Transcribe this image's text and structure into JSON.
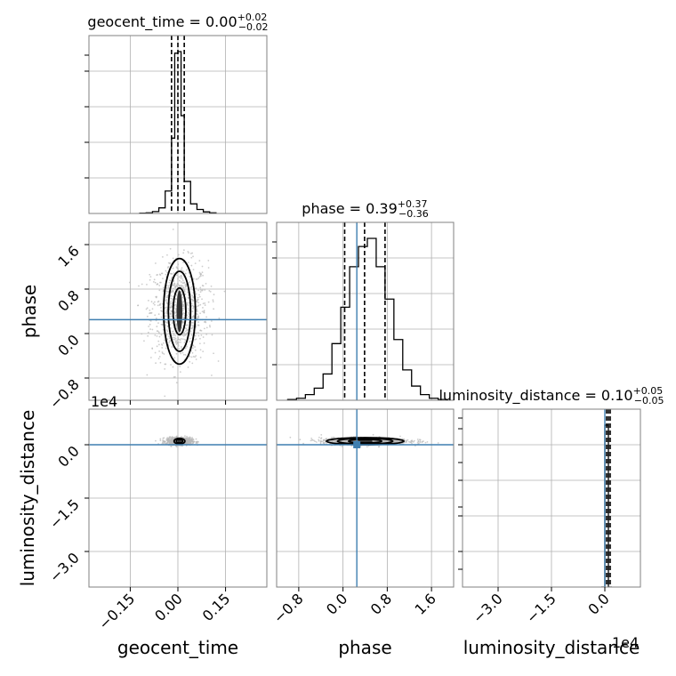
{
  "chart_data": {
    "type": "corner",
    "parameters": [
      "geocent_time",
      "phase",
      "luminosity_distance"
    ],
    "grid": true,
    "colors": {
      "hist": "#000000",
      "truth": "#3f7fb0",
      "grid": "#b0b0b0",
      "frame": "#808080",
      "scatter": "#b8b8b8",
      "contour": "#000000"
    },
    "diagonal": [
      {
        "param": "geocent_time",
        "title_main": "geocent_time = 0.00",
        "title_plus": "+0.02",
        "title_minus": "−0.02",
        "xlim": [
          -0.28,
          0.28
        ],
        "bin_edges": [
          -0.12,
          -0.1,
          -0.08,
          -0.06,
          -0.04,
          -0.02,
          -0.01,
          0.0,
          0.01,
          0.02,
          0.04,
          0.06,
          0.08,
          0.1,
          0.12
        ],
        "counts": [
          2,
          4,
          12,
          35,
          140,
          470,
          1000,
          1010,
          610,
          200,
          60,
          25,
          10,
          4
        ],
        "quantiles": [
          -0.02,
          0.0,
          0.02
        ],
        "truth": null,
        "xticks": []
      },
      {
        "param": "phase",
        "title_main": "phase = 0.39",
        "title_plus": "+0.37",
        "title_minus": "−0.36",
        "xlim": [
          -1.2,
          2.0
        ],
        "bin_edges": [
          -1.0,
          -0.84,
          -0.68,
          -0.52,
          -0.36,
          -0.2,
          -0.04,
          0.12,
          0.28,
          0.44,
          0.6,
          0.76,
          0.92,
          1.08,
          1.24,
          1.4,
          1.56,
          1.72,
          1.88
        ],
        "counts": [
          2,
          5,
          14,
          30,
          65,
          140,
          230,
          330,
          380,
          400,
          330,
          250,
          150,
          75,
          35,
          14,
          5,
          2
        ],
        "quantiles": [
          0.03,
          0.39,
          0.76
        ],
        "truth": 0.25,
        "xticks": []
      },
      {
        "param": "luminosity_distance",
        "title_main": "luminosity_distance = 0.10",
        "title_plus": "+0.05",
        "title_minus": "−0.05",
        "xlim": [
          -4.0,
          1.0
        ],
        "bin_edges": [
          -0.1,
          0.0,
          0.1,
          0.2
        ],
        "counts": [
          0,
          1,
          0
        ],
        "quantiles": [
          0.05,
          0.1,
          0.15
        ],
        "truth": 0.0,
        "xticks": [
          "−3.0",
          "−1.5",
          "0.0"
        ],
        "xtick_values": [
          -3.0,
          -1.5,
          0.0
        ],
        "x_offset_label": "1e4",
        "xlabel": "luminosity_distance"
      }
    ],
    "pairs": [
      {
        "x": "geocent_time",
        "y": "phase",
        "xlim": [
          -0.28,
          0.28
        ],
        "ylim": [
          -1.2,
          2.0
        ],
        "center": [
          0.005,
          0.4
        ],
        "contours": [
          {
            "level": 0.39,
            "rx": 0.02,
            "ry": 0.42
          },
          {
            "level": 0.86,
            "rx": 0.035,
            "ry": 0.72
          },
          {
            "level": 0.99,
            "rx": 0.05,
            "ry": 0.95
          }
        ],
        "spread": [
          0.045,
          0.45
        ],
        "hline": 0.25,
        "vline": null
      },
      {
        "x": "geocent_time",
        "y": "luminosity_distance",
        "xlim": [
          -0.28,
          0.28
        ],
        "ylim": [
          -4.0,
          1.0
        ],
        "center": [
          0.005,
          0.1
        ],
        "contours": [
          {
            "level": 0.39,
            "rx": 0.01,
            "ry": 0.05
          },
          {
            "level": 0.86,
            "rx": 0.017,
            "ry": 0.08
          }
        ],
        "spread": [
          0.02,
          0.05
        ],
        "hline": 0.0,
        "vline": null
      },
      {
        "x": "phase",
        "y": "luminosity_distance",
        "xlim": [
          -1.2,
          2.0
        ],
        "ylim": [
          -4.0,
          1.0
        ],
        "center": [
          0.4,
          0.1
        ],
        "contours": [
          {
            "level": 0.39,
            "rx": 0.3,
            "ry": 0.05
          },
          {
            "level": 0.86,
            "rx": 0.5,
            "ry": 0.08
          },
          {
            "level": 0.99,
            "rx": 0.7,
            "ry": 0.1
          }
        ],
        "spread": [
          0.4,
          0.05
        ],
        "hline": 0.0,
        "vline": 0.25,
        "truth_point": [
          0.25,
          0.0
        ]
      }
    ],
    "axis_ticks": {
      "geocent_time": {
        "labels": [
          "−0.15",
          "0.00",
          "0.15"
        ],
        "values": [
          -0.15,
          0.0,
          0.15
        ]
      },
      "phase": {
        "labels": [
          "−0.8",
          "0.0",
          "0.8",
          "1.6"
        ],
        "values": [
          -0.8,
          0.0,
          0.8,
          1.6
        ]
      },
      "luminosity_distance": {
        "labels": [
          "−3.0",
          "−1.5",
          "0.0"
        ],
        "values": [
          -3.0,
          -1.5,
          0.0
        ]
      }
    },
    "y_offset_label": "1e4",
    "xlabels": [
      "geocent_time",
      "phase",
      "luminosity_distance"
    ],
    "ylabels": [
      "phase",
      "luminosity_distance"
    ]
  }
}
